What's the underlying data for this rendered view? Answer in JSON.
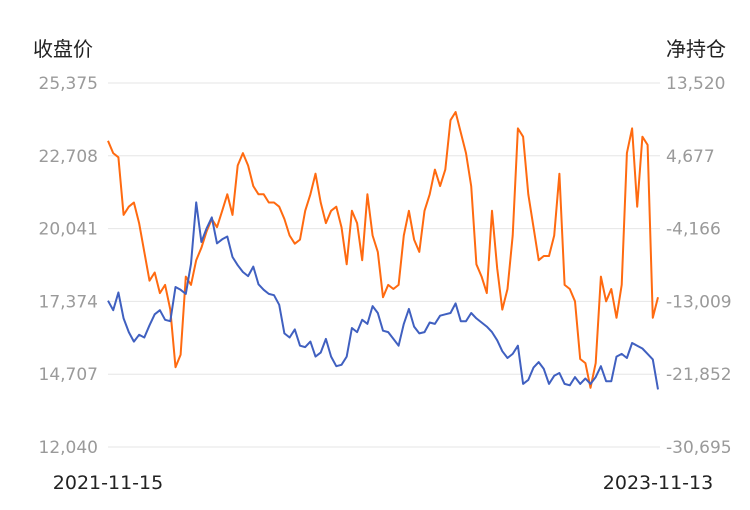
{
  "chart_data": {
    "type": "line",
    "title": "",
    "xlabel": "",
    "x_start": "2021-11-15",
    "x_end": "2023-11-13",
    "grid": "horizontal",
    "left_axis": {
      "label": "收盘价",
      "ylim": [
        12040,
        25375
      ],
      "ticks": [
        "25,375",
        "22,708",
        "20,041",
        "17,374",
        "14,707",
        "12,040"
      ]
    },
    "right_axis": {
      "label": "净持仓",
      "ylim": [
        -30695,
        13520
      ],
      "ticks": [
        "13,520",
        "4,677",
        "-4,166",
        "-13,009",
        "-21,852",
        "-30,695"
      ]
    },
    "series": [
      {
        "axis": "left",
        "color": "#4060c0",
        "values": [
          17400,
          17050,
          17700,
          16750,
          16250,
          15900,
          16150,
          16050,
          16500,
          16900,
          17050,
          16700,
          16650,
          17900,
          17800,
          17650,
          18750,
          21000,
          19550,
          20050,
          20450,
          19500,
          19650,
          19750,
          19000,
          18700,
          18450,
          18300,
          18650,
          18000,
          17800,
          17650,
          17600,
          17250,
          16200,
          16050,
          16350,
          15750,
          15700,
          15900,
          15350,
          15500,
          16000,
          15350,
          15000,
          15050,
          15350,
          16400,
          16250,
          16700,
          16550,
          17200,
          16950,
          16300,
          16250,
          16000,
          15750,
          16550,
          17100,
          16450,
          16200,
          16250,
          16600,
          16550,
          16850,
          16900,
          16950,
          17300,
          16650,
          16650,
          16950,
          16750,
          16600,
          16450,
          16250,
          15950,
          15550,
          15300,
          15450,
          15750,
          14350,
          14500,
          14950,
          15150,
          14900,
          14350,
          14650,
          14750,
          14350,
          14300,
          14600,
          14350,
          14550,
          14350,
          14600,
          15000,
          14450,
          14450,
          15350,
          15450,
          15300,
          15850,
          15750,
          15650,
          15450,
          15250,
          14150
        ]
      },
      {
        "axis": "right",
        "color": "#ff6a10",
        "values": [
          6500,
          5000,
          4500,
          -2500,
          -1500,
          -1000,
          -3500,
          -7000,
          -10500,
          -9500,
          -12000,
          -11000,
          -14000,
          -21000,
          -19500,
          -10000,
          -11000,
          -8000,
          -6500,
          -4500,
          -3000,
          -4000,
          -2000,
          0,
          -2500,
          3500,
          5000,
          3500,
          1000,
          0,
          0,
          -1000,
          -1000,
          -1500,
          -3000,
          -5000,
          -6000,
          -5500,
          -2000,
          0,
          2500,
          -1000,
          -3500,
          -2000,
          -1500,
          -4000,
          -8500,
          -2000,
          -3500,
          -8000,
          0,
          -5000,
          -7000,
          -12500,
          -11000,
          -11500,
          -11000,
          -5000,
          -2000,
          -5500,
          -7000,
          -2000,
          0,
          3000,
          1000,
          3000,
          9000,
          10000,
          7500,
          5000,
          1000,
          -8500,
          -10000,
          -12000,
          -2000,
          -9000,
          -14000,
          -11500,
          -5000,
          8000,
          7000,
          0,
          -4000,
          -8000,
          -7500,
          -7500,
          -5000,
          2500,
          -11000,
          -11500,
          -13000,
          -20000,
          -20500,
          -23500,
          -20500,
          -10000,
          -13000,
          -11500,
          -15000,
          -11000,
          5000,
          8000,
          -1500,
          7000,
          6000,
          -15000,
          -12500
        ]
      }
    ]
  }
}
